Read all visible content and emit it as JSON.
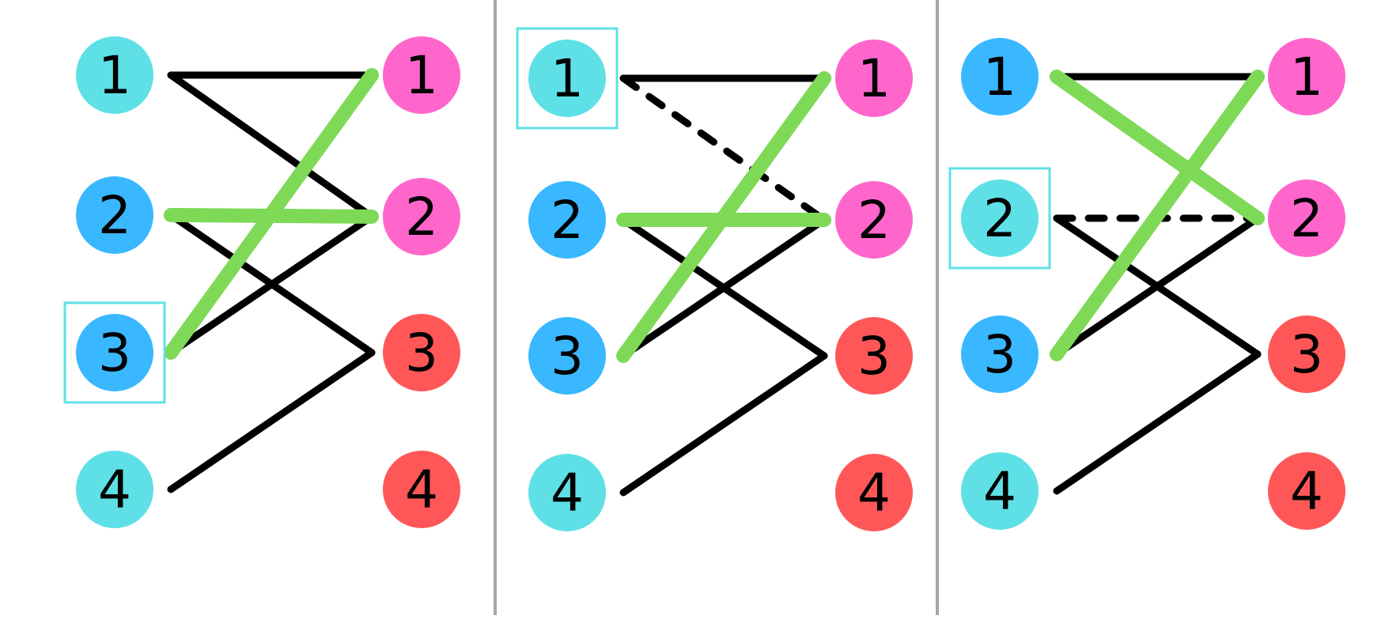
{
  "colors": {
    "cyan": "#5ee0e6",
    "blue": "#3ab8ff",
    "pink": "#ff66cc",
    "red": "#ff5757",
    "green": "#7ed957",
    "black": "#000000",
    "divider": "#a6a6a6",
    "highlight": "#5ee0e6"
  },
  "panels": [
    {
      "name": "panel-1",
      "left_nodes": [
        {
          "label": "1",
          "color": "cyan"
        },
        {
          "label": "2",
          "color": "blue"
        },
        {
          "label": "3",
          "color": "blue",
          "highlighted": true
        },
        {
          "label": "4",
          "color": "cyan"
        }
      ],
      "right_nodes": [
        {
          "label": "1",
          "color": "pink"
        },
        {
          "label": "2",
          "color": "pink"
        },
        {
          "label": "3",
          "color": "red"
        },
        {
          "label": "4",
          "color": "red"
        }
      ],
      "edges": [
        {
          "from": 1,
          "to": 1,
          "style": "solid"
        },
        {
          "from": 1,
          "to": 2,
          "style": "solid"
        },
        {
          "from": 2,
          "to": 3,
          "style": "solid"
        },
        {
          "from": 3,
          "to": 2,
          "style": "solid"
        },
        {
          "from": 4,
          "to": 3,
          "style": "solid"
        },
        {
          "from": 2,
          "to": 2,
          "style": "matched"
        },
        {
          "from": 3,
          "to": 1,
          "style": "matched"
        }
      ]
    },
    {
      "name": "panel-2",
      "left_nodes": [
        {
          "label": "1",
          "color": "cyan",
          "highlighted": true
        },
        {
          "label": "2",
          "color": "blue"
        },
        {
          "label": "3",
          "color": "blue"
        },
        {
          "label": "4",
          "color": "cyan"
        }
      ],
      "right_nodes": [
        {
          "label": "1",
          "color": "pink"
        },
        {
          "label": "2",
          "color": "pink"
        },
        {
          "label": "3",
          "color": "red"
        },
        {
          "label": "4",
          "color": "red"
        }
      ],
      "edges": [
        {
          "from": 1,
          "to": 1,
          "style": "solid"
        },
        {
          "from": 1,
          "to": 2,
          "style": "dashed"
        },
        {
          "from": 2,
          "to": 3,
          "style": "solid"
        },
        {
          "from": 3,
          "to": 2,
          "style": "solid"
        },
        {
          "from": 4,
          "to": 3,
          "style": "solid"
        },
        {
          "from": 2,
          "to": 2,
          "style": "matched"
        },
        {
          "from": 3,
          "to": 1,
          "style": "matched"
        }
      ]
    },
    {
      "name": "panel-3",
      "left_nodes": [
        {
          "label": "1",
          "color": "blue"
        },
        {
          "label": "2",
          "color": "cyan",
          "highlighted": true
        },
        {
          "label": "3",
          "color": "blue"
        },
        {
          "label": "4",
          "color": "cyan"
        }
      ],
      "right_nodes": [
        {
          "label": "1",
          "color": "pink"
        },
        {
          "label": "2",
          "color": "pink"
        },
        {
          "label": "3",
          "color": "red"
        },
        {
          "label": "4",
          "color": "red"
        }
      ],
      "edges": [
        {
          "from": 1,
          "to": 1,
          "style": "solid"
        },
        {
          "from": 2,
          "to": 2,
          "style": "dashed"
        },
        {
          "from": 2,
          "to": 3,
          "style": "solid"
        },
        {
          "from": 3,
          "to": 2,
          "style": "solid"
        },
        {
          "from": 4,
          "to": 3,
          "style": "solid"
        },
        {
          "from": 1,
          "to": 2,
          "style": "matched"
        },
        {
          "from": 3,
          "to": 1,
          "style": "matched"
        }
      ]
    }
  ]
}
